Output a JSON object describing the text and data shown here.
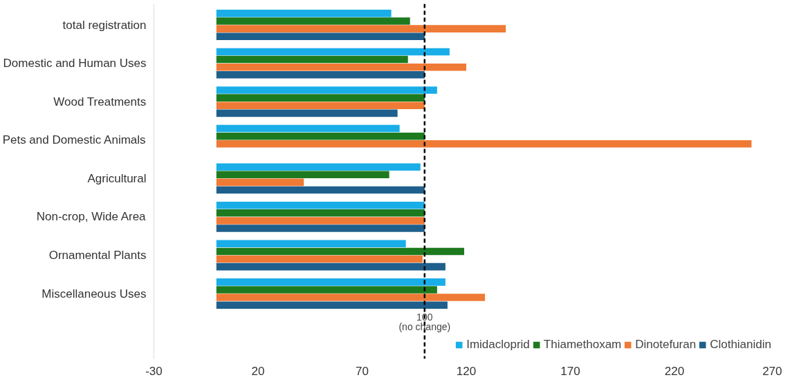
{
  "chart_data": {
    "type": "bar",
    "orientation": "horizontal",
    "categories": [
      "total registration",
      "Domestic and Human Uses",
      "Wood Treatments",
      "Pets and Domestic Animals",
      "Agricultural",
      "Non-crop, Wide Area",
      "Ornamental Plants",
      "Miscellaneous Uses"
    ],
    "series": [
      {
        "name": "Imidacloprid",
        "color": "#1aaee8",
        "values": [
          84,
          112,
          106,
          88,
          98,
          100,
          91,
          110
        ]
      },
      {
        "name": "Thiamethoxam",
        "color": "#1e7a1e",
        "values": [
          93,
          92,
          100,
          100,
          83,
          100,
          119,
          106
        ]
      },
      {
        "name": "Dinotefuran",
        "color": "#ef7a35",
        "values": [
          139,
          120,
          100,
          257,
          42,
          100,
          99,
          129
        ]
      },
      {
        "name": "Clothianidin",
        "color": "#1f5f8b",
        "values": [
          100,
          100,
          87,
          null,
          100,
          100,
          110,
          111
        ]
      }
    ],
    "xlim": [
      -30,
      270
    ],
    "xticks": [
      -30,
      20,
      70,
      120,
      170,
      220,
      270
    ],
    "ref_lines": [
      {
        "axis": "x",
        "value": 100,
        "label": "100\n(no change)",
        "color": "#000000",
        "line_style": "dashed"
      }
    ],
    "grid": false,
    "legend": "bottom"
  }
}
